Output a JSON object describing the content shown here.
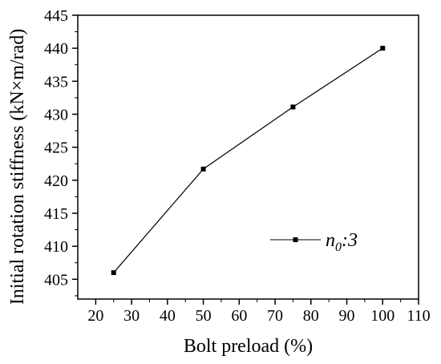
{
  "chart_data": {
    "type": "line",
    "title": "",
    "xlabel": "Bolt preload (%)",
    "ylabel": "Initial rotation stiffness (kN×m/rad)",
    "xlim": [
      15,
      110
    ],
    "ylim": [
      402,
      445
    ],
    "xticks": [
      20,
      30,
      40,
      50,
      60,
      70,
      80,
      90,
      100,
      110
    ],
    "yticks": [
      405,
      410,
      415,
      420,
      425,
      430,
      435,
      440,
      445
    ],
    "grid": false,
    "legend_position": "bottom-right",
    "series": [
      {
        "name": "n0:3",
        "legend_main": "n",
        "legend_sub": "0",
        "legend_tail": ":3",
        "marker": "square",
        "color": "#000000",
        "x": [
          25,
          50,
          75,
          100
        ],
        "y": [
          406.0,
          421.7,
          431.1,
          440.0
        ]
      }
    ]
  }
}
